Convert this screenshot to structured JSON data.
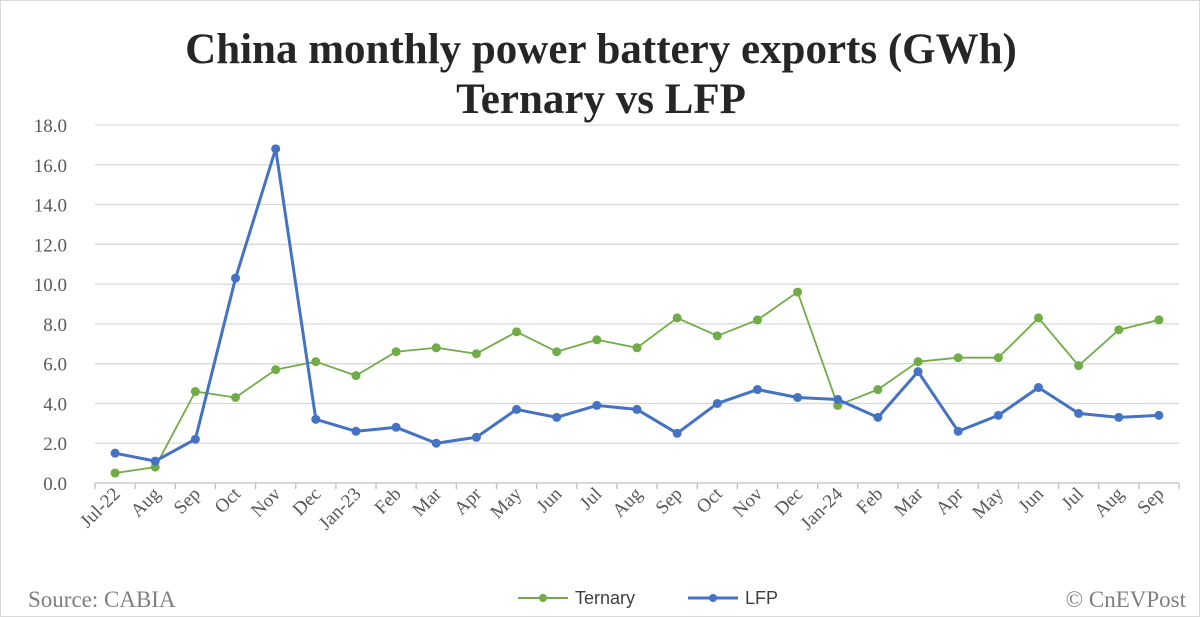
{
  "chart_data": {
    "type": "line",
    "title": "China monthly power battery exports (GWh)",
    "subtitle": "Ternary vs LFP",
    "xlabel": "",
    "ylabel": "",
    "ylim": [
      0,
      18
    ],
    "yticks": [
      "0.0",
      "2.0",
      "4.0",
      "6.0",
      "8.0",
      "10.0",
      "12.0",
      "14.0",
      "16.0",
      "18.0"
    ],
    "grid": true,
    "legend_position": "bottom",
    "categories": [
      "Jul-22",
      "Aug",
      "Sep",
      "Oct",
      "Nov",
      "Dec",
      "Jan-23",
      "Feb",
      "Mar",
      "Apr",
      "May",
      "Jun",
      "Jul",
      "Aug",
      "Sep",
      "Oct",
      "Nov",
      "Dec",
      "Jan-24",
      "Feb",
      "Mar",
      "Apr",
      "May",
      "Jun",
      "Jul",
      "Aug",
      "Sep"
    ],
    "series": [
      {
        "name": "Ternary",
        "color": "#70ad47",
        "values": [
          0.5,
          0.8,
          4.6,
          4.3,
          5.7,
          6.1,
          5.4,
          6.6,
          6.8,
          6.5,
          7.6,
          6.6,
          7.2,
          6.8,
          8.3,
          7.4,
          8.2,
          9.6,
          3.9,
          4.7,
          6.1,
          6.3,
          6.3,
          8.3,
          5.9,
          7.7,
          8.2
        ]
      },
      {
        "name": "LFP",
        "color": "#4472c4",
        "values": [
          1.5,
          1.1,
          2.2,
          10.3,
          16.8,
          3.2,
          2.6,
          2.8,
          2.0,
          2.3,
          3.7,
          3.3,
          3.9,
          3.7,
          2.5,
          4.0,
          4.7,
          4.3,
          4.2,
          3.3,
          5.6,
          2.6,
          3.4,
          4.8,
          3.5,
          3.3,
          3.4
        ]
      }
    ]
  },
  "footer": {
    "source": "Source: CABIA",
    "credit": "© CnEVPost"
  }
}
